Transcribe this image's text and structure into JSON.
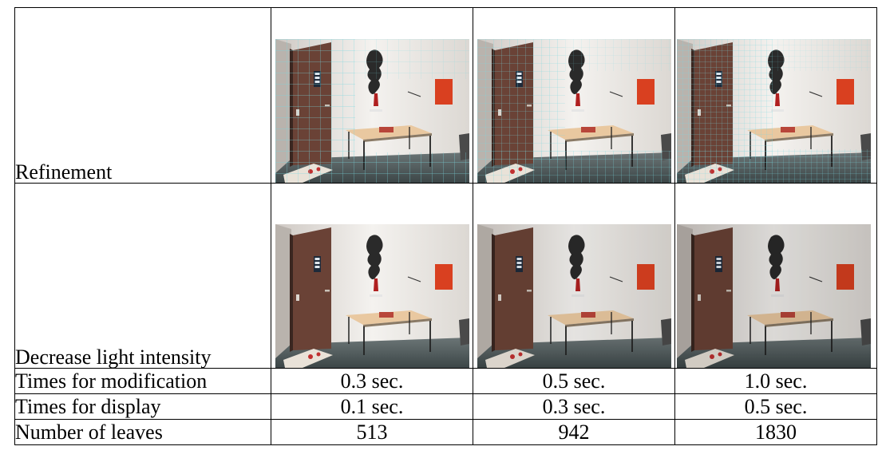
{
  "rows": {
    "refinement": "Refinement",
    "decrease_light": "Decrease light intensity",
    "times_modification": {
      "label": "Times for modification",
      "values": [
        "0.3 sec.",
        "0.5 sec.",
        "1.0 sec."
      ]
    },
    "times_display": {
      "label": "Times for display",
      "values": [
        "0.1 sec.",
        "0.3 sec.",
        "0.5 sec."
      ]
    },
    "leaves": {
      "label": "Number of leaves",
      "values": [
        "513",
        "942",
        "1830"
      ]
    }
  },
  "colors": {
    "wall": "#e8e4e0",
    "door": "#6a4236",
    "floor": "#4a5658",
    "mesh": "#7ad8e0",
    "panel": "#d94020",
    "table_top": "#e9c8a0"
  }
}
